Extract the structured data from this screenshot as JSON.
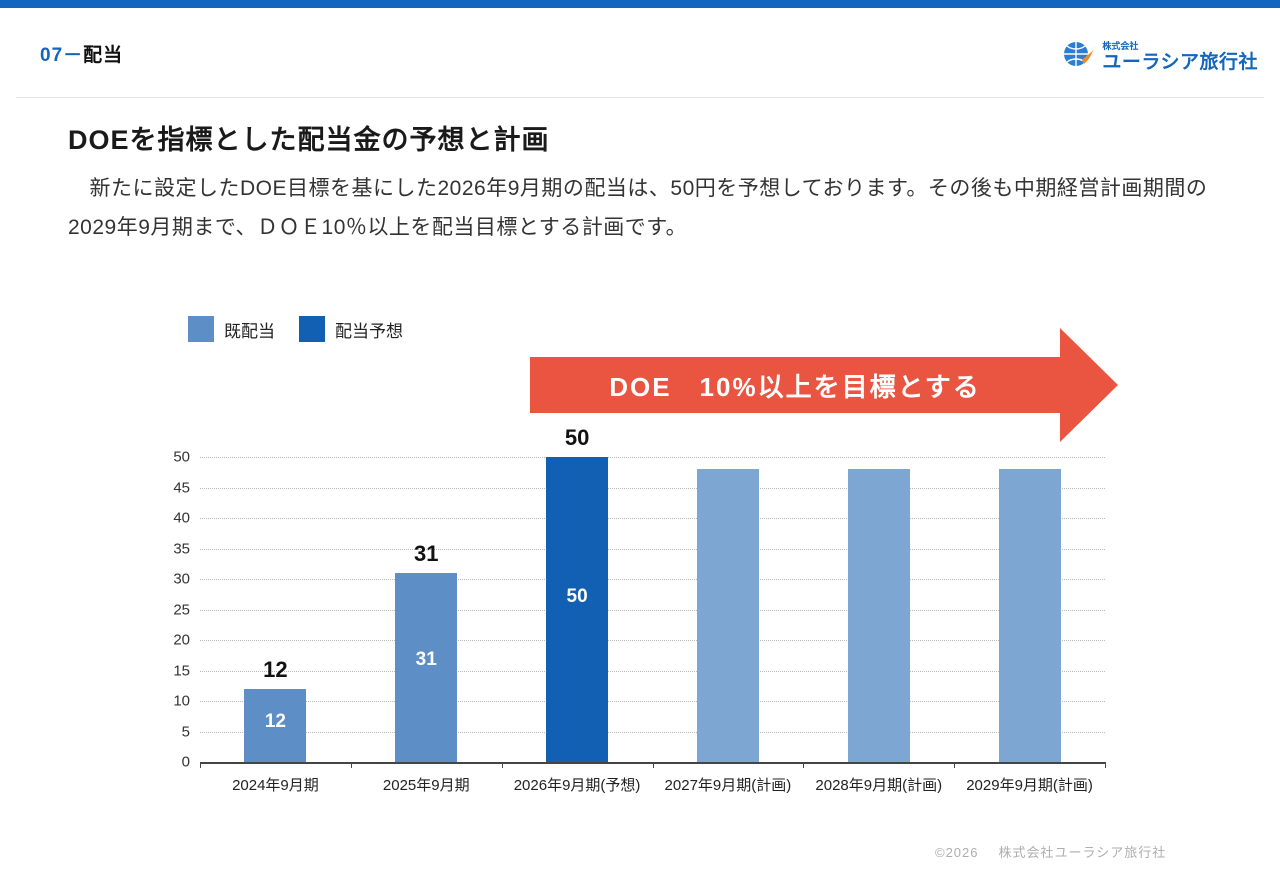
{
  "theme": {
    "accent_blue": "#1365bd",
    "bar_actual": "#5d8fc6",
    "bar_forecast": "#1260b4",
    "bar_plan": "#7da6d3",
    "banner_red": "#ea5541"
  },
  "header": {
    "section_number": "07",
    "section_separator": "－",
    "section_title": "配当"
  },
  "logo": {
    "company_prefix": "株式会社",
    "company_name": "ユーラシア旅行社"
  },
  "slide": {
    "title": "DOEを指標とした配当金の予想と計画",
    "body": "　新たに設定したDOE目標を基にした2026年9月期の配当は、50円を予想しております。その後も中期経営計画期間の2029年9月期まで、ＤＯＥ10％以上を配当目標とする計画です。"
  },
  "legend": [
    {
      "label": "既配当"
    },
    {
      "label": "配当予想"
    }
  ],
  "banner": {
    "text": "DOE　10%以上を目標とする"
  },
  "chart_data": {
    "type": "bar",
    "title": "",
    "categories": [
      "2024年9月期",
      "2025年9月期",
      "2026年9月期(予想)",
      "2027年9月期(計画)",
      "2028年9月期(計画)",
      "2029年9月期(計画)"
    ],
    "values": [
      12,
      31,
      50,
      48,
      48,
      48
    ],
    "series_type": [
      "actual",
      "actual",
      "forecast",
      "plan",
      "plan",
      "plan"
    ],
    "value_labels_shown": [
      true,
      true,
      true,
      false,
      false,
      false
    ],
    "ylabel": "",
    "xlabel": "",
    "ylim": [
      0,
      50
    ],
    "ytick_step": 5,
    "grid": "horizontal-dotted",
    "legend_position": "top-left",
    "legend_entries": [
      "既配当",
      "配当予想"
    ]
  },
  "footer": {
    "copyright": "©2026",
    "company": "株式会社ユーラシア旅行社"
  }
}
